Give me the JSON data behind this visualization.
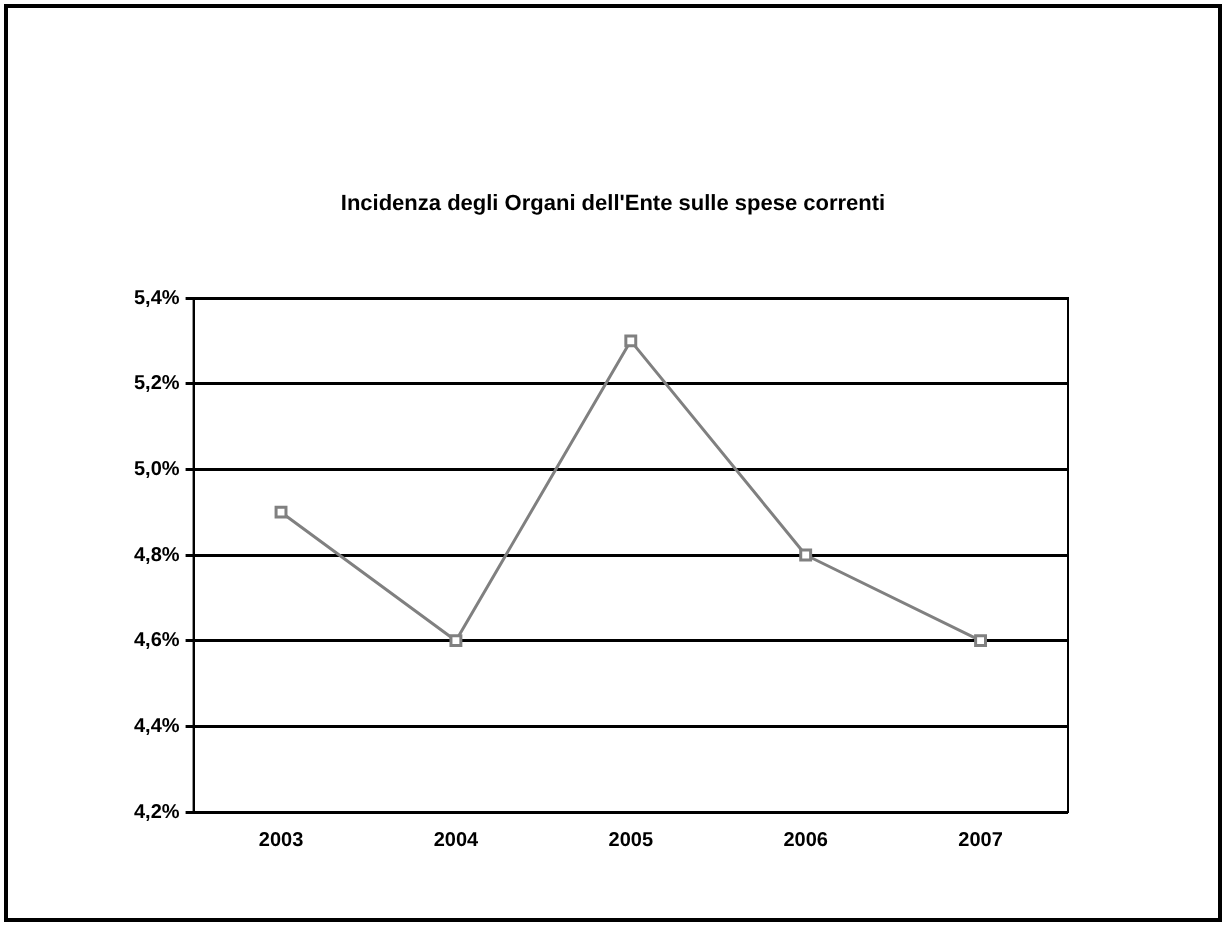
{
  "chart_data": {
    "type": "line",
    "title": "Incidenza degli Organi dell'Ente sulle spese correnti",
    "categories": [
      "2003",
      "2004",
      "2005",
      "2006",
      "2007"
    ],
    "series": [
      {
        "color": "#808080",
        "values": [
          4.9,
          4.6,
          5.3,
          4.8,
          4.6
        ]
      }
    ],
    "ylim": [
      4.2,
      5.4
    ],
    "yticks": [
      {
        "value": 4.2,
        "label": "4,2%"
      },
      {
        "value": 4.4,
        "label": "4,4%"
      },
      {
        "value": 4.6,
        "label": "4,6%"
      },
      {
        "value": 4.8,
        "label": "4,8%"
      },
      {
        "value": 5.0,
        "label": "5,0%"
      },
      {
        "value": 5.2,
        "label": "5,2%"
      },
      {
        "value": 5.4,
        "label": "5,4%"
      }
    ],
    "grid": "y",
    "legend": false,
    "marker": "square",
    "line_style": "solid"
  }
}
